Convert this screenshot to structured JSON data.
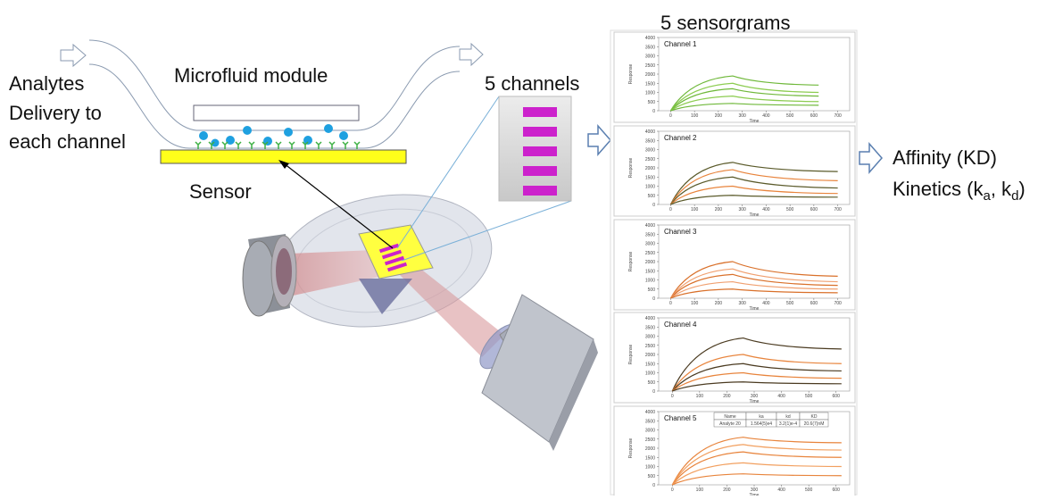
{
  "labels": {
    "analytes": [
      "Analytes",
      "Delivery to",
      "each channel"
    ],
    "module": "Microfluid module",
    "sensor": "Sensor",
    "channels": "5 channels",
    "sensorgrams": "5 sensorgrams",
    "affinity": "Affinity (KD)",
    "kinetics": [
      "Kinetics (k",
      "a",
      ", k",
      "d",
      ")"
    ]
  },
  "panels": [
    {
      "title": "Channel 1",
      "y_label": "Response",
      "x_label": "Time",
      "ylim": [
        0,
        4000
      ],
      "yticks": [
        0,
        500,
        1000,
        1500,
        2000,
        2500,
        3000,
        3500,
        4000
      ],
      "xlim": [
        -50,
        750
      ],
      "xticks": [
        0,
        100,
        200,
        300,
        400,
        500,
        600,
        700
      ],
      "colors": [
        "#6fb83a",
        "#8ccc50"
      ],
      "curve_x": [
        0,
        260,
        620
      ],
      "curves": [
        [
          0,
          1900,
          1400
        ],
        [
          0,
          1500,
          1000
        ],
        [
          0,
          1200,
          800
        ],
        [
          0,
          800,
          500
        ],
        [
          0,
          400,
          300
        ]
      ]
    },
    {
      "title": "Channel 2",
      "y_label": "Response",
      "x_label": "Time",
      "ylim": [
        0,
        4000
      ],
      "yticks": [
        0,
        500,
        1000,
        1500,
        2000,
        2500,
        3000,
        3500,
        4000
      ],
      "xlim": [
        -50,
        750
      ],
      "xticks": [
        0,
        100,
        200,
        300,
        400,
        500,
        600,
        700
      ],
      "colors": [
        "#5a5a2a",
        "#e8843c"
      ],
      "curve_x": [
        0,
        260,
        700
      ],
      "curves": [
        [
          0,
          2300,
          1800
        ],
        [
          0,
          1900,
          1300
        ],
        [
          0,
          1500,
          900
        ],
        [
          0,
          1000,
          600
        ],
        [
          0,
          500,
          400
        ]
      ]
    },
    {
      "title": "Channel 3",
      "y_label": "Response",
      "x_label": "Time",
      "ylim": [
        0,
        4000
      ],
      "yticks": [
        0,
        500,
        1000,
        1500,
        2000,
        2500,
        3000,
        3500,
        4000
      ],
      "xlim": [
        -50,
        750
      ],
      "xticks": [
        0,
        100,
        200,
        300,
        400,
        500,
        600,
        700
      ],
      "colors": [
        "#d9702a",
        "#f0a070"
      ],
      "curve_x": [
        0,
        260,
        700
      ],
      "curves": [
        [
          0,
          2000,
          1200
        ],
        [
          0,
          1600,
          900
        ],
        [
          0,
          1300,
          700
        ],
        [
          0,
          900,
          500
        ],
        [
          0,
          500,
          300
        ]
      ]
    },
    {
      "title": "Channel 4",
      "y_label": "Response",
      "x_label": "Time",
      "ylim": [
        0,
        4000
      ],
      "yticks": [
        0,
        500,
        1000,
        1500,
        2000,
        2500,
        3000,
        3500,
        4000
      ],
      "xlim": [
        -50,
        650
      ],
      "xticks": [
        0,
        100,
        200,
        300,
        400,
        500,
        600
      ],
      "colors": [
        "#4a3a20",
        "#e8843c"
      ],
      "curve_x": [
        0,
        260,
        620
      ],
      "curves": [
        [
          0,
          2900,
          2300
        ],
        [
          0,
          2000,
          1500
        ],
        [
          0,
          1500,
          1100
        ],
        [
          0,
          1000,
          700
        ],
        [
          0,
          500,
          400
        ]
      ]
    },
    {
      "title": "Channel 5",
      "y_label": "Response",
      "x_label": "Time",
      "ylim": [
        0,
        4000
      ],
      "yticks": [
        0,
        500,
        1000,
        1500,
        2000,
        2500,
        3000,
        3500,
        4000
      ],
      "xlim": [
        -50,
        650
      ],
      "xticks": [
        0,
        100,
        200,
        300,
        400,
        500,
        600
      ],
      "colors": [
        "#e8843c",
        "#f2a060"
      ],
      "curve_x": [
        0,
        260,
        620
      ],
      "curves": [
        [
          0,
          2600,
          2300
        ],
        [
          0,
          2200,
          1900
        ],
        [
          0,
          1800,
          1500
        ],
        [
          0,
          1200,
          1000
        ],
        [
          0,
          600,
          500
        ]
      ],
      "table": {
        "header": [
          "Name",
          "ka",
          "kd",
          "KD"
        ],
        "row": [
          "Analyte 20",
          "1.564(5)e4",
          "3.2(1)e-4",
          "20.6(7)nM"
        ]
      }
    }
  ]
}
